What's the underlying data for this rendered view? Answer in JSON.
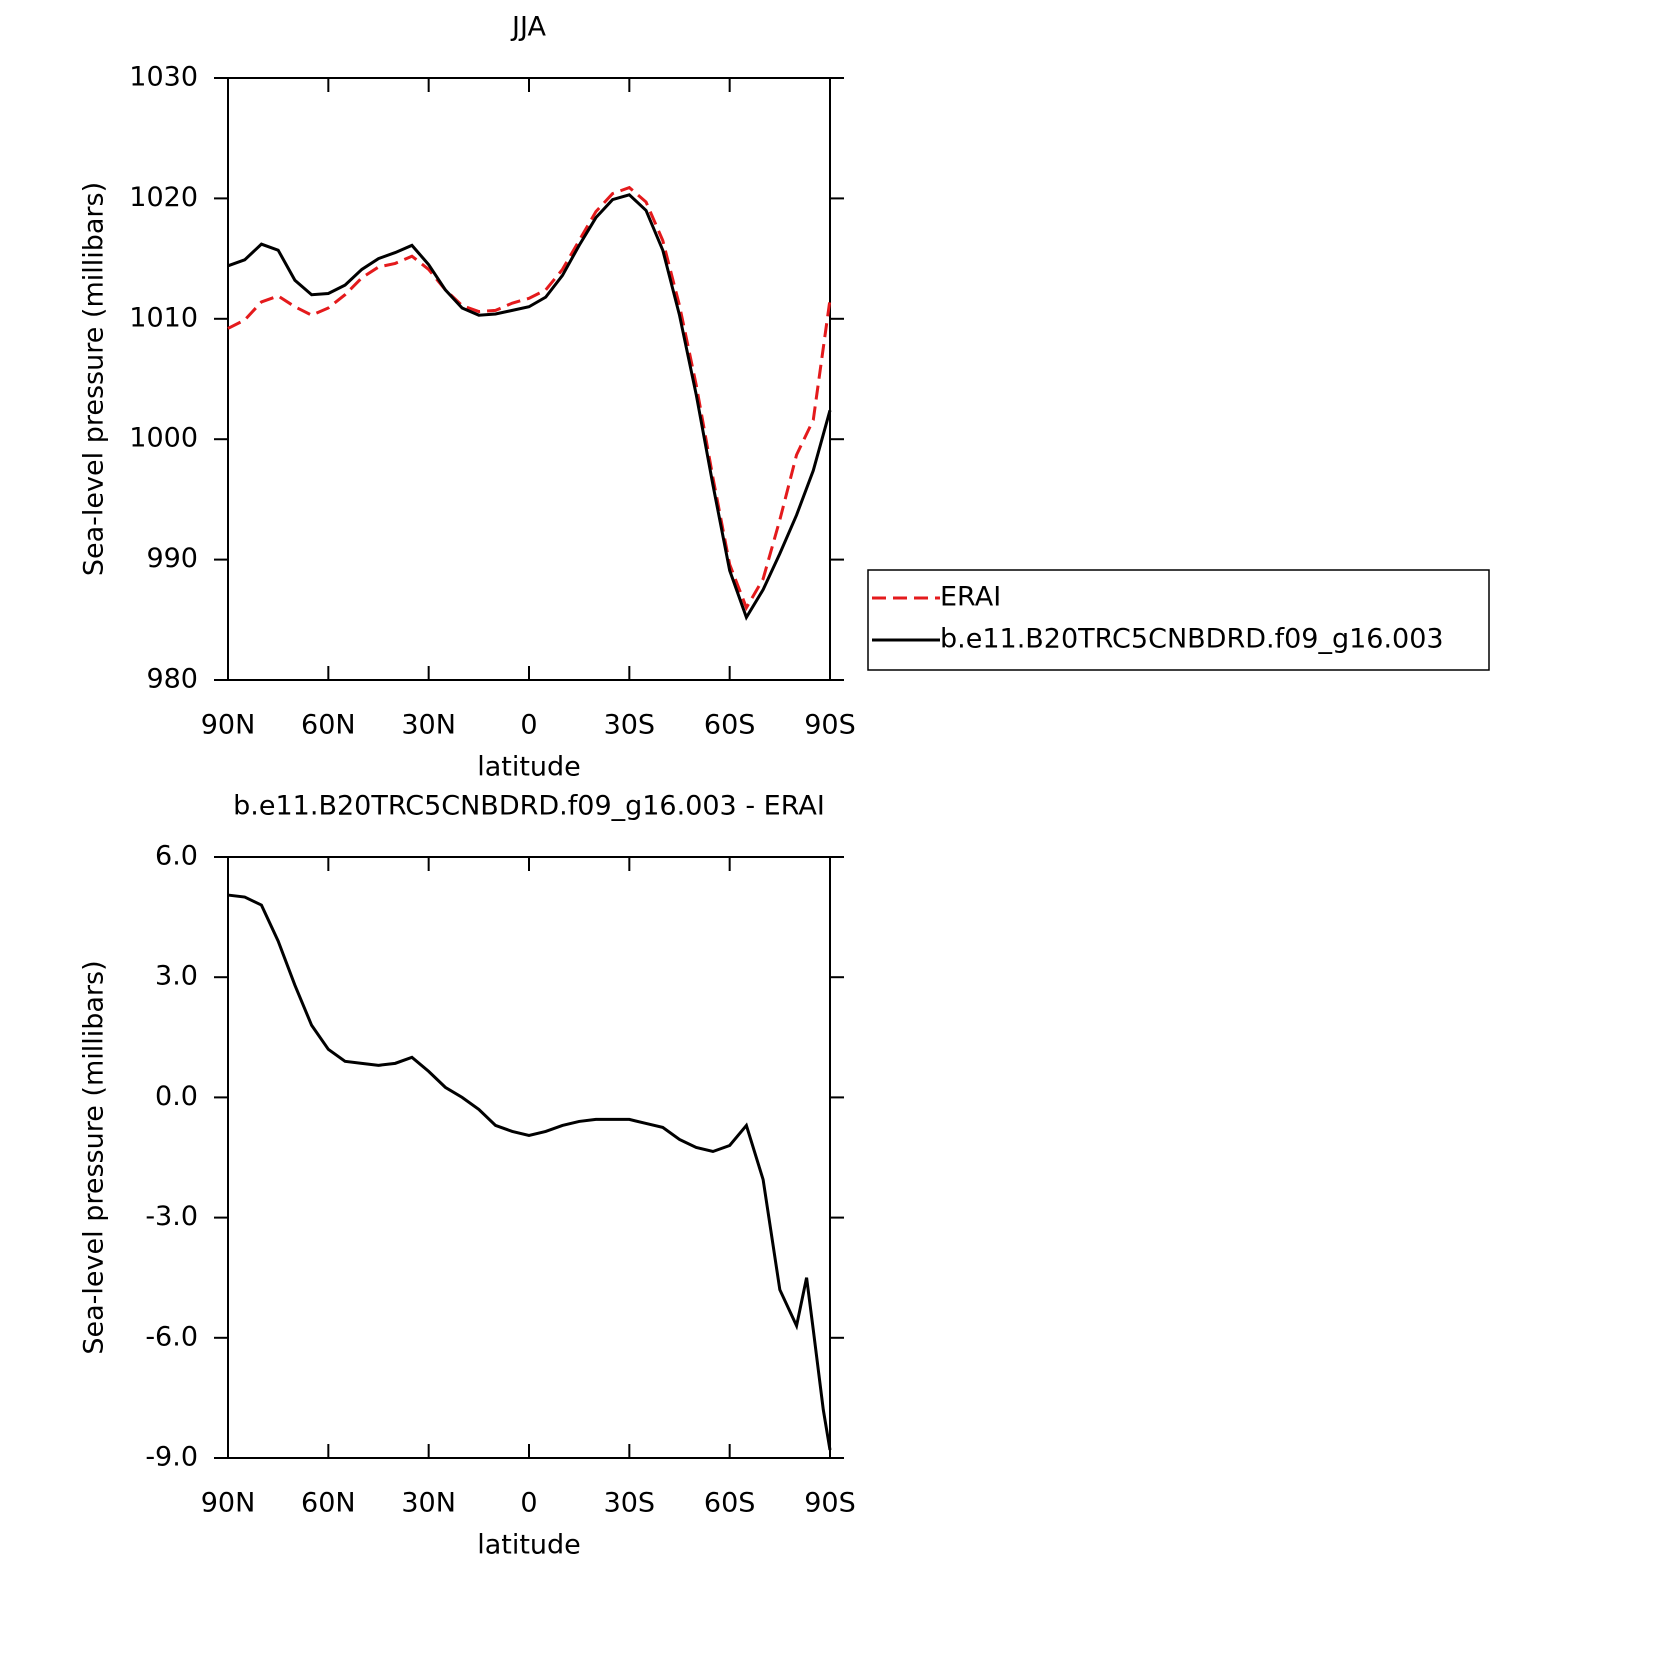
{
  "chart_data": [
    {
      "type": "line",
      "title": "JJA",
      "xlabel": "latitude",
      "ylabel": "Sea-level pressure (millibars)",
      "x": [
        90,
        85,
        80,
        75,
        70,
        65,
        60,
        55,
        50,
        45,
        40,
        35,
        30,
        25,
        20,
        15,
        10,
        5,
        0,
        -5,
        -10,
        -15,
        -20,
        -25,
        -30,
        -35,
        -40,
        -45,
        -50,
        -55,
        -60,
        -65,
        -70,
        -75,
        -80,
        -85,
        -90
      ],
      "series": [
        {
          "name": "ERAI",
          "color": "#e41a1c",
          "dash": true,
          "values": [
            1009.2,
            1009.9,
            1011.4,
            1011.9,
            1011.0,
            1010.3,
            1010.9,
            1012.0,
            1013.4,
            1014.3,
            1014.6,
            1015.2,
            1014.1,
            1012.4,
            1011.1,
            1010.6,
            1010.7,
            1011.3,
            1011.7,
            1012.4,
            1014.1,
            1016.5,
            1018.9,
            1020.4,
            1020.9,
            1019.7,
            1016.5,
            1011.1,
            1004.5,
            996.8,
            989.6,
            986.0,
            988.4,
            993.3,
            998.7,
            1001.6,
            1011.6
          ]
        },
        {
          "name": "b.e11.B20TRC5CNBDRD.f09_g16.003",
          "color": "#000000",
          "dash": false,
          "values": [
            1014.4,
            1014.9,
            1016.2,
            1015.7,
            1013.2,
            1012.0,
            1012.1,
            1012.8,
            1014.1,
            1015.0,
            1015.5,
            1016.1,
            1014.5,
            1012.4,
            1010.9,
            1010.3,
            1010.4,
            1010.7,
            1011.0,
            1011.8,
            1013.6,
            1016.1,
            1018.4,
            1019.9,
            1020.3,
            1019.0,
            1015.7,
            1010.3,
            1003.7,
            996.2,
            989.1,
            985.2,
            987.5,
            990.5,
            993.7,
            997.4,
            1002.4
          ]
        }
      ],
      "xlim": [
        90,
        -90
      ],
      "xticks": [
        {
          "value": 90,
          "label": "90N"
        },
        {
          "value": 60,
          "label": "60N"
        },
        {
          "value": 30,
          "label": "30N"
        },
        0,
        {
          "value": -30,
          "label": "30S"
        },
        {
          "value": -60,
          "label": "60S"
        },
        {
          "value": -90,
          "label": "90S"
        }
      ],
      "ylim": [
        980,
        1030
      ],
      "yticks": [
        980,
        990,
        1000,
        1010,
        1020,
        1030
      ],
      "legend": "right"
    },
    {
      "type": "line",
      "title": "b.e11.B20TRC5CNBDRD.f09_g16.003 - ERAI",
      "xlabel": "latitude",
      "ylabel": "Sea-level pressure (millibars)",
      "x": [
        90,
        85,
        80,
        75,
        70,
        65,
        60,
        55,
        50,
        45,
        40,
        35,
        30,
        25,
        20,
        15,
        10,
        5,
        0,
        -5,
        -10,
        -15,
        -20,
        -25,
        -30,
        -35,
        -40,
        -45,
        -50,
        -55,
        -60,
        -65,
        -70,
        -75,
        -80,
        -83,
        -85,
        -88,
        -90
      ],
      "series": [
        {
          "color": "#000000",
          "dash": false,
          "values": [
            5.05,
            5.0,
            4.8,
            3.9,
            2.8,
            1.8,
            1.2,
            0.9,
            0.85,
            0.8,
            0.85,
            1.0,
            0.65,
            0.25,
            0.0,
            -0.3,
            -0.7,
            -0.85,
            -0.95,
            -0.85,
            -0.7,
            -0.6,
            -0.55,
            -0.55,
            -0.55,
            -0.65,
            -0.75,
            -1.05,
            -1.25,
            -1.35,
            -1.2,
            -0.7,
            -2.05,
            -4.8,
            -5.7,
            -4.5,
            -5.8,
            -7.8,
            -8.8
          ]
        }
      ],
      "xlim": [
        90,
        -90
      ],
      "xticks": [
        {
          "value": 90,
          "label": "90N"
        },
        {
          "value": 60,
          "label": "60N"
        },
        {
          "value": 30,
          "label": "30N"
        },
        0,
        {
          "value": -30,
          "label": "30S"
        },
        {
          "value": -60,
          "label": "60S"
        },
        {
          "value": -90,
          "label": "90S"
        }
      ],
      "ylim": [
        -9,
        6
      ],
      "yticks": [
        {
          "value": -9,
          "label": "-9.0"
        },
        {
          "value": -6,
          "label": "-6.0"
        },
        {
          "value": -3,
          "label": "-3.0"
        },
        {
          "value": 0,
          "label": "0.0"
        },
        {
          "value": 3,
          "label": "3.0"
        },
        {
          "value": 6,
          "label": "6.0"
        }
      ]
    }
  ]
}
